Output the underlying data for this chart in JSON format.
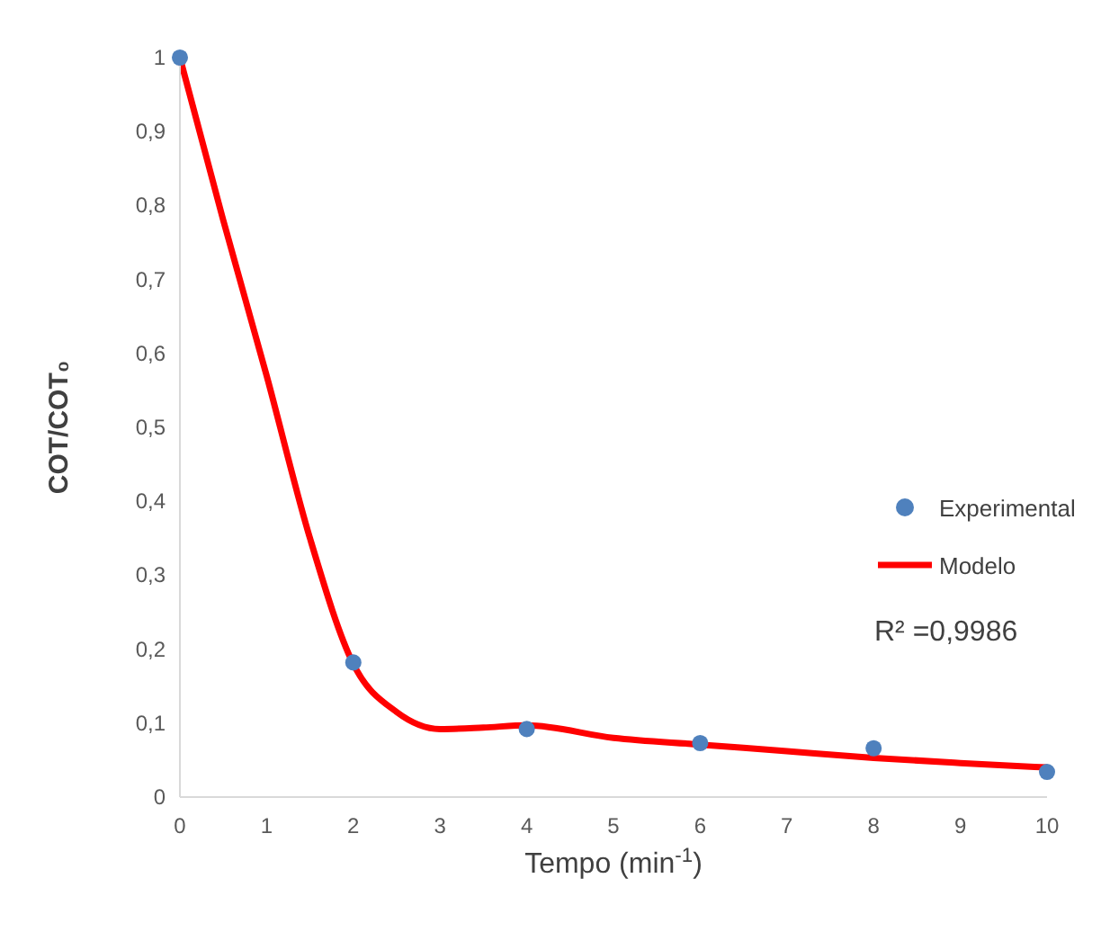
{
  "chart_data": {
    "type": "scatter",
    "xlabel": "Tempo (min$^{-1}$)",
    "ylabel": "COT/COT₀",
    "xlim": [
      0,
      10
    ],
    "xticks": [
      0,
      1,
      2,
      3,
      4,
      5,
      6,
      7,
      8,
      9,
      10
    ],
    "ylim": [
      0,
      1
    ],
    "yticks": [
      0,
      {
        "value": 0.1,
        "label": "0,1"
      },
      {
        "value": 0.2,
        "label": "0,2"
      },
      {
        "value": 0.3,
        "label": "0,3"
      },
      {
        "value": 0.4,
        "label": "0,4"
      },
      {
        "value": 0.5,
        "label": "0,5"
      },
      {
        "value": 0.6,
        "label": "0,6"
      },
      {
        "value": 0.7,
        "label": "0,7"
      },
      {
        "value": 0.8,
        "label": "0,8"
      },
      {
        "value": 0.9,
        "label": "0,9"
      },
      1
    ],
    "grid": false,
    "legend": "right",
    "annotations": [
      "R² =0,9986"
    ],
    "series": [
      {
        "name": "Experimental",
        "color": "#4f81bd",
        "marker": "circle",
        "x": [
          0,
          2,
          4,
          6,
          8,
          10
        ],
        "values": [
          1,
          0.182,
          0.092,
          0.073,
          0.066,
          0.034
        ]
      },
      {
        "name": "Modelo",
        "type": "line",
        "color": "#ff0000",
        "marker": "none",
        "line_style": "solid",
        "x": [
          0,
          0.5,
          1,
          1.5,
          2,
          2.5,
          3,
          3.5,
          4,
          5,
          6,
          7,
          8,
          9,
          10
        ],
        "values": [
          1,
          0.78,
          0.57,
          0.35,
          0.18,
          0.115,
          0.092,
          0.094,
          0.097,
          0.08,
          0.071,
          0.062,
          0.053,
          0.046,
          0.04
        ]
      }
    ]
  }
}
